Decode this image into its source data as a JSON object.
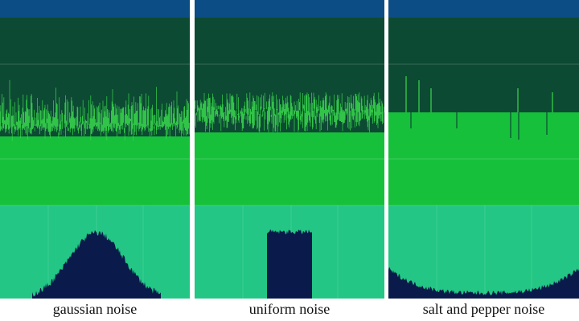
{
  "panels": [
    {
      "id": "gaussian",
      "caption": "gaussian noise",
      "noise_type": "gaussian"
    },
    {
      "id": "uniform",
      "caption": "uniform noise",
      "noise_type": "uniform"
    },
    {
      "id": "salt-pepper",
      "caption": "salt and pepper noise",
      "noise_type": "salt-and-pepper"
    }
  ],
  "colors": {
    "top_band": "#0c4d86",
    "dark_band": "#0d4a33",
    "green_band": "#16c03b",
    "teal_band": "#23c684",
    "noise_line": "#3ad84e",
    "histogram": "#0a1a4a",
    "divider": "#ffffff"
  }
}
